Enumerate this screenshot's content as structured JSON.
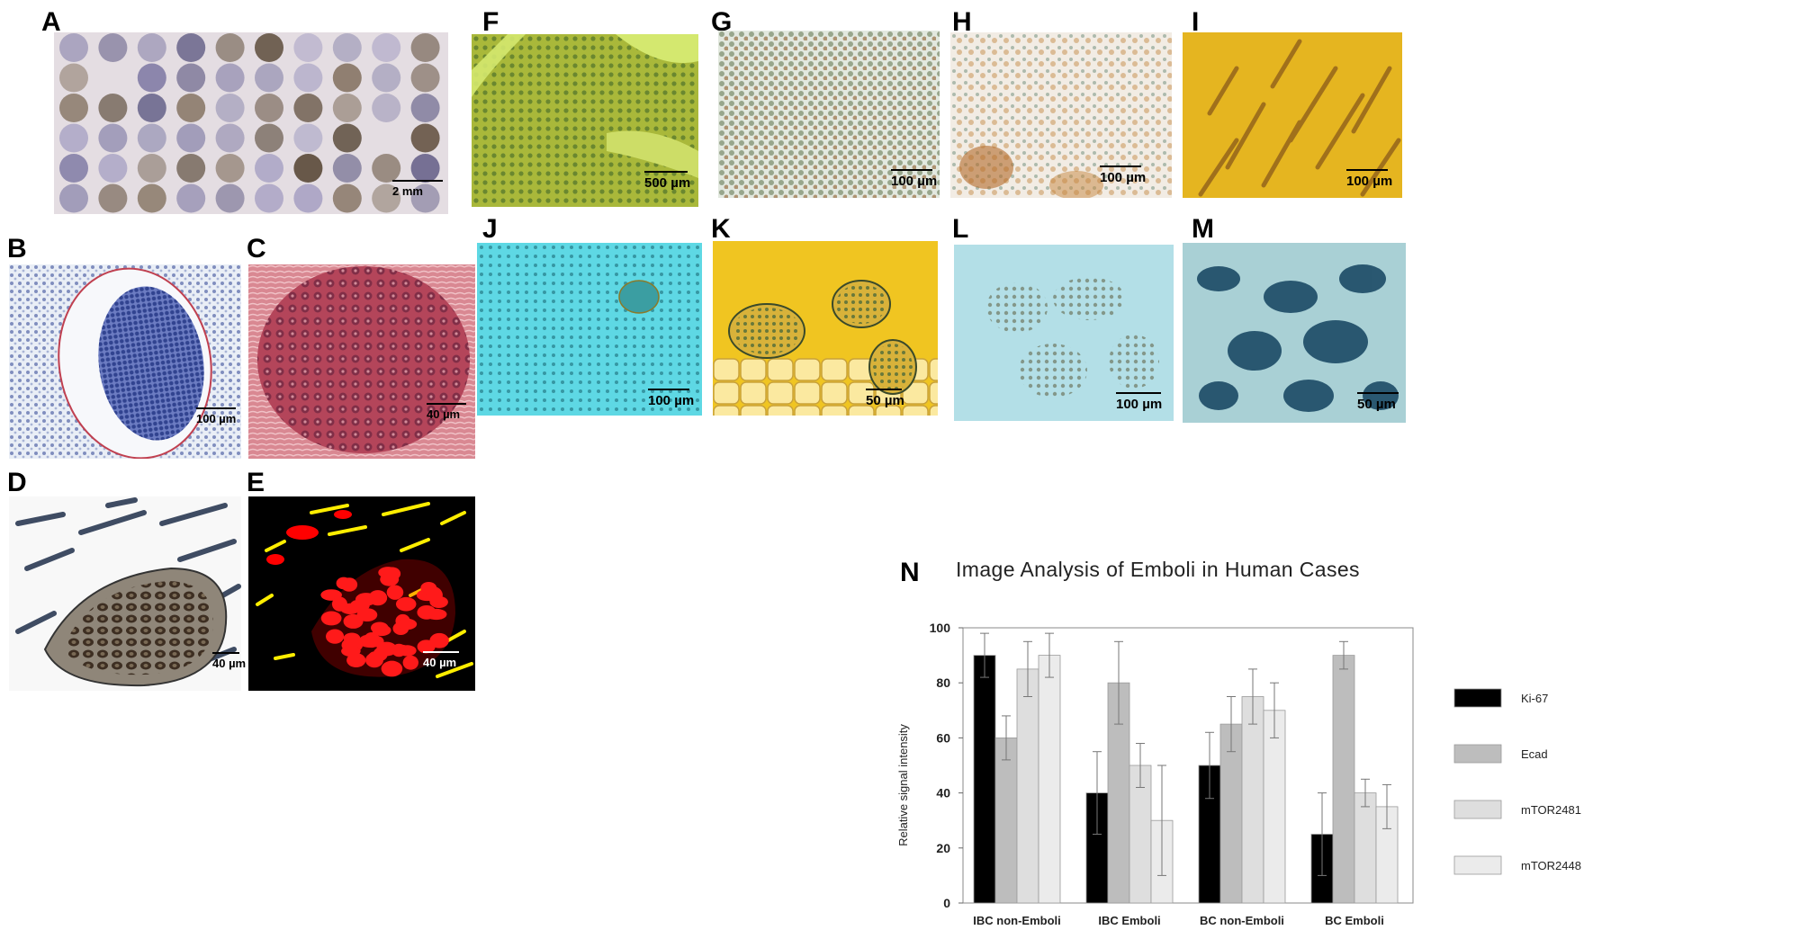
{
  "panels": {
    "A": {
      "letter": "A",
      "scale": "2 mm"
    },
    "B": {
      "letter": "B",
      "scale": "100 µm"
    },
    "C": {
      "letter": "C",
      "scale": "40 µm"
    },
    "D": {
      "letter": "D",
      "scale": "40 µm"
    },
    "E": {
      "letter": "E",
      "scale": "40 µm"
    },
    "F": {
      "letter": "F",
      "scale": "500 µm"
    },
    "G": {
      "letter": "G",
      "scale": "100 µm"
    },
    "H": {
      "letter": "H",
      "scale": "100 µm"
    },
    "I": {
      "letter": "I",
      "scale": "100 µm"
    },
    "J": {
      "letter": "J",
      "scale": "100 µm"
    },
    "K": {
      "letter": "K",
      "scale": "50 µm"
    },
    "L": {
      "letter": "L",
      "scale": "100 µm"
    },
    "M": {
      "letter": "M",
      "scale": "50 µm"
    },
    "N": {
      "letter": "N"
    }
  },
  "colors": {
    "tma_bg": "#e4dde2",
    "f_stain": "#b9c23a",
    "g_stain": "#e8ece6",
    "h_stain": "#f3ede6",
    "i_stain": "#e2b21a",
    "j_stain": "#4fd3e0",
    "k_stain": "#f0c521",
    "l_stain": "#a9dbe4",
    "m_stain": "#9fc9cf",
    "c_stain": "#c0505f"
  },
  "chart_data": {
    "type": "bar",
    "title": "Image Analysis of Emboli in Human Cases",
    "ylabel": "Relative signal intensity",
    "xlabel": "",
    "ylim": [
      0,
      100
    ],
    "yticks": [
      0,
      20,
      40,
      60,
      80,
      100
    ],
    "categories": [
      "IBC  non-Emboli",
      "IBC  Emboli",
      "BC  non-Emboli",
      "BC  Emboli"
    ],
    "series": [
      {
        "name": "Ki-67",
        "color": "#000000",
        "values": [
          90,
          40,
          50,
          25
        ],
        "err": [
          8,
          15,
          12,
          15
        ]
      },
      {
        "name": "Ecad",
        "color": "#bdbdbd",
        "values": [
          60,
          80,
          65,
          90
        ],
        "err": [
          8,
          15,
          10,
          5
        ]
      },
      {
        "name": "mTOR2481",
        "color": "#dedede",
        "values": [
          85,
          50,
          75,
          40
        ],
        "err": [
          10,
          8,
          10,
          5
        ]
      },
      {
        "name": "mTOR2448",
        "color": "#ebebeb",
        "values": [
          90,
          30,
          70,
          35
        ],
        "err": [
          8,
          20,
          10,
          8
        ]
      }
    ],
    "legend_position": "right",
    "grid": false
  }
}
